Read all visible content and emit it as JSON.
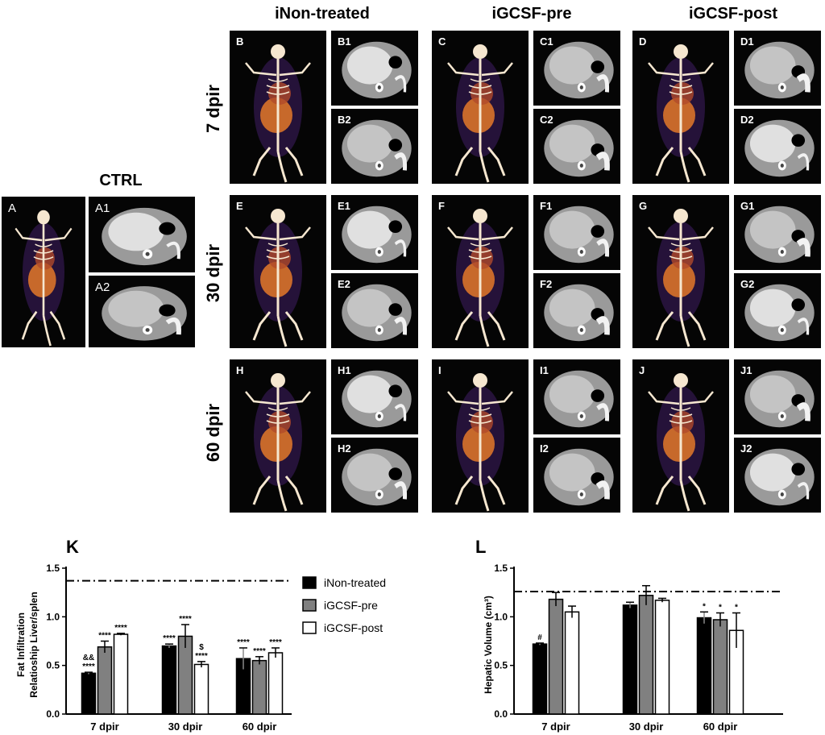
{
  "headers": {
    "ctrl": "CTRL",
    "col1": "iNon-treated",
    "col2": "iGCSF-pre",
    "col3": "iGCSF-post"
  },
  "rows": {
    "r1": "7 dpir",
    "r2": "30 dpir",
    "r3": "60 dpir"
  },
  "panel_labels": {
    "A": "A",
    "A1": "A1",
    "A2": "A2",
    "B": "B",
    "B1": "B1",
    "B2": "B2",
    "C": "C",
    "C1": "C1",
    "C2": "C2",
    "D": "D",
    "D1": "D1",
    "D2": "D2",
    "E": "E",
    "E1": "E1",
    "E2": "E2",
    "F": "F",
    "F1": "F1",
    "F2": "F2",
    "G": "G",
    "G1": "G1",
    "G2": "G2",
    "H": "H",
    "H1": "H1",
    "H2": "H2",
    "I": "I",
    "I1": "I1",
    "I2": "I2",
    "J": "J",
    "J1": "J1",
    "J2": "J2"
  },
  "colors": {
    "non_treated": "#000000",
    "gcsf_pre": "#808080",
    "gcsf_post": "#ffffff",
    "bone": "#f6e7d0",
    "organ": "#d9732a",
    "body_glow": "#3a1b5c"
  },
  "chart_data": [
    {
      "type": "bar",
      "panel_letter": "K",
      "categories": [
        "7 dpir",
        "30 dpir",
        "60 dpir"
      ],
      "ylabel_line1": "Fat Infiltration",
      "ylabel_line2": "Relatioship Liver/splen",
      "ylim": [
        0,
        1.5
      ],
      "yticks": [
        "0.0",
        "0.5",
        "1.0",
        "1.5"
      ],
      "reference_line": 1.37,
      "series": [
        {
          "name": "iNon-treated",
          "values": [
            0.42,
            0.7,
            0.57
          ],
          "errors": [
            0.01,
            0.02,
            0.11
          ],
          "annotations": [
            "&&\n****",
            "****",
            "****"
          ]
        },
        {
          "name": "iGCSF-pre",
          "values": [
            0.69,
            0.8,
            0.55
          ],
          "errors": [
            0.06,
            0.12,
            0.04
          ],
          "annotations": [
            "****",
            "****",
            "****"
          ]
        },
        {
          "name": "iGCSF-post",
          "values": [
            0.82,
            0.51,
            0.63
          ],
          "errors": [
            0.01,
            0.03,
            0.05
          ],
          "annotations": [
            "****",
            "$\n****",
            "****"
          ]
        }
      ],
      "legend": [
        "iNon-treated",
        "iGCSF-pre",
        "iGCSF-post"
      ],
      "legend_position": "right"
    },
    {
      "type": "bar",
      "panel_letter": "L",
      "categories": [
        "7 dpir",
        "30 dpir",
        "60 dpir"
      ],
      "ylabel": "Hepatic Volume (cm³)",
      "ylim": [
        0,
        1.5
      ],
      "yticks": [
        "0.0",
        "0.5",
        "1.0",
        "1.5"
      ],
      "reference_line": 1.26,
      "series": [
        {
          "name": "iNon-treated",
          "values": [
            0.72,
            1.12,
            0.99
          ],
          "errors": [
            0.01,
            0.03,
            0.06
          ],
          "annotations": [
            "#",
            "",
            "*"
          ]
        },
        {
          "name": "iGCSF-pre",
          "values": [
            1.18,
            1.22,
            0.97
          ],
          "errors": [
            0.07,
            0.1,
            0.07
          ],
          "annotations": [
            "",
            "",
            "*"
          ]
        },
        {
          "name": "iGCSF-post",
          "values": [
            1.05,
            1.17,
            0.86
          ],
          "errors": [
            0.06,
            0.02,
            0.18
          ],
          "annotations": [
            "",
            "",
            "*"
          ]
        }
      ]
    }
  ]
}
